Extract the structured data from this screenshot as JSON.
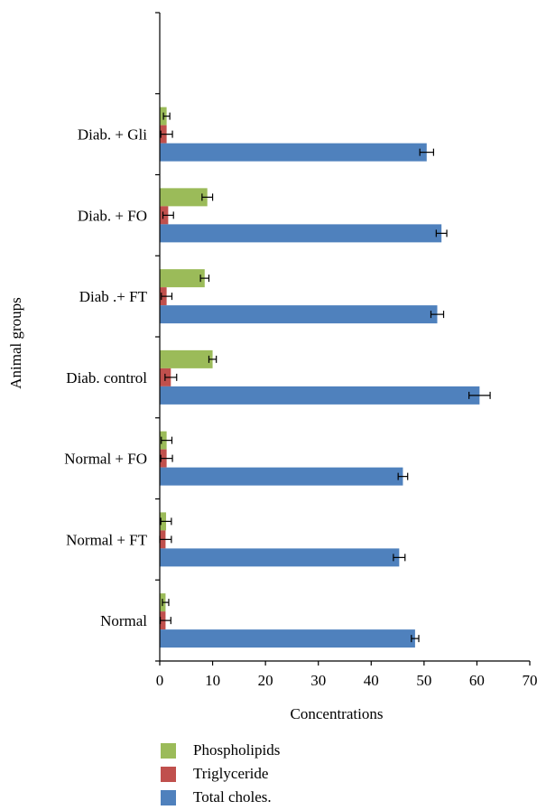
{
  "chart_data": {
    "type": "bar",
    "orientation": "horizontal",
    "title": "",
    "xlabel": "Concentrations",
    "ylabel": "Animal groups",
    "xlim": [
      0,
      70
    ],
    "xticks": [
      "0",
      "10",
      "20",
      "30",
      "40",
      "50",
      "60",
      "70"
    ],
    "categories": [
      "Normal",
      "Normal + FT",
      "Normal + FO",
      "Diab. control",
      "Diab .+ FT",
      "Diab. + FO",
      "Diab. + Gli"
    ],
    "series": [
      {
        "name": "Phospholipids",
        "color": "#9bbb59",
        "values": [
          1.1,
          1.2,
          1.3,
          10.0,
          8.5,
          9.0,
          1.3
        ],
        "errors": [
          0.6,
          1.0,
          1.0,
          0.7,
          0.8,
          1.0,
          0.6
        ]
      },
      {
        "name": "Triglyceride",
        "color": "#c0504d",
        "values": [
          1.1,
          1.1,
          1.3,
          2.1,
          1.3,
          1.6,
          1.3
        ],
        "errors": [
          1.0,
          1.1,
          1.1,
          1.1,
          1.0,
          1.0,
          1.1
        ]
      },
      {
        "name": "Total choles.",
        "color": "#4f81bd",
        "values": [
          48.3,
          45.3,
          46.0,
          60.5,
          52.5,
          53.3,
          50.5
        ],
        "errors": [
          0.7,
          1.1,
          0.9,
          2.0,
          1.2,
          1.0,
          1.3
        ]
      }
    ],
    "legend_position": "bottom",
    "grid": false
  }
}
